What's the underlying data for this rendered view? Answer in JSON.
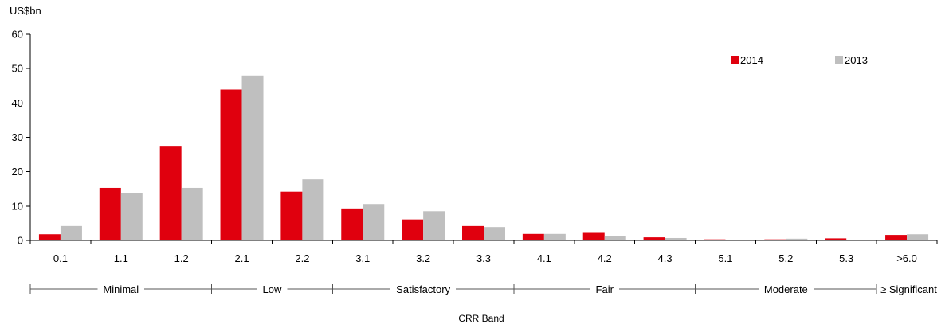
{
  "chart_data": {
    "type": "bar",
    "ylabel": "US$bn",
    "xlabel": "CRR Band",
    "ylim": [
      0,
      60
    ],
    "yticks": [
      0,
      10,
      20,
      30,
      40,
      50,
      60
    ],
    "categories": [
      "0.1",
      "1.1",
      "1.2",
      "2.1",
      "2.2",
      "3.1",
      "3.2",
      "3.3",
      "4.1",
      "4.2",
      "4.3",
      "5.1",
      "5.2",
      "5.3",
      ">6.0"
    ],
    "series": [
      {
        "name": "2014",
        "color": "#E0000E",
        "values": [
          1.8,
          15.3,
          27.3,
          43.9,
          14.2,
          9.3,
          6.1,
          4.2,
          1.9,
          2.2,
          0.9,
          0.3,
          0.3,
          0.6,
          1.6
        ]
      },
      {
        "name": "2013",
        "color": "#BFBFBF",
        "values": [
          4.2,
          13.9,
          15.3,
          48.0,
          17.8,
          10.6,
          8.5,
          3.9,
          1.9,
          1.3,
          0.7,
          0.2,
          0.5,
          0.2,
          1.8
        ]
      }
    ],
    "groups": [
      {
        "label": "Minimal",
        "from": 0,
        "to": 2
      },
      {
        "label": "Low",
        "from": 3,
        "to": 4
      },
      {
        "label": "Satisfactory",
        "from": 5,
        "to": 7
      },
      {
        "label": "Fair",
        "from": 8,
        "to": 10
      },
      {
        "label": "Moderate",
        "from": 11,
        "to": 13
      },
      {
        "label": "≥ Significant",
        "from": 14,
        "to": 14
      }
    ],
    "legend_position": "top-right",
    "grid": false
  }
}
